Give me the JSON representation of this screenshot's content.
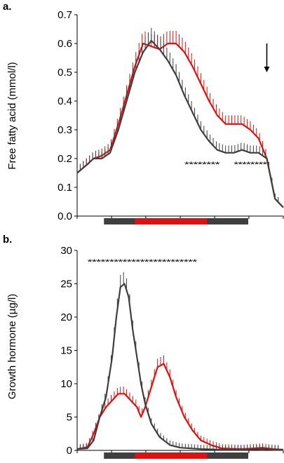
{
  "colors": {
    "red": "#e01010",
    "dark": "#3f3f3f",
    "black": "#000000"
  },
  "chart_data": [
    {
      "type": "line",
      "panel_label": "a.",
      "ylabel": "Free fatty acid (mmol/l)",
      "ylim": [
        0,
        0.7
      ],
      "yticks": [
        0.0,
        0.1,
        0.2,
        0.3,
        0.4,
        0.5,
        0.6,
        0.7
      ],
      "ytick_labels": [
        "0.0",
        "0.1",
        "0.2",
        "0.3",
        "0.4",
        "0.5",
        "0.6",
        "0.7"
      ],
      "xlim": [
        0,
        100
      ],
      "xticks": [
        0,
        16.7,
        33.3,
        50,
        66.7,
        83.3,
        100
      ],
      "series": [
        {
          "color": "red",
          "x": [
            0,
            5,
            8,
            12,
            16,
            20,
            24,
            28,
            32,
            36,
            40,
            44,
            48,
            52,
            56,
            60,
            64,
            68,
            72,
            76,
            80,
            84,
            88,
            92,
            96,
            100
          ],
          "y": [
            0.15,
            0.18,
            0.2,
            0.21,
            0.23,
            0.32,
            0.42,
            0.52,
            0.6,
            0.59,
            0.58,
            0.6,
            0.6,
            0.57,
            0.52,
            0.46,
            0.4,
            0.35,
            0.32,
            0.32,
            0.32,
            0.3,
            0.27,
            0.2,
            0.06,
            0.03
          ]
        },
        {
          "color": "dark",
          "x": [
            0,
            5,
            8,
            12,
            16,
            20,
            24,
            28,
            32,
            36,
            40,
            44,
            48,
            52,
            56,
            60,
            64,
            68,
            72,
            76,
            80,
            84,
            88,
            92,
            96,
            100
          ],
          "y": [
            0.15,
            0.18,
            0.2,
            0.2,
            0.22,
            0.3,
            0.4,
            0.5,
            0.57,
            0.61,
            0.58,
            0.54,
            0.49,
            0.42,
            0.36,
            0.3,
            0.26,
            0.23,
            0.22,
            0.22,
            0.23,
            0.22,
            0.22,
            0.2,
            0.06,
            0.03
          ]
        }
      ],
      "annotations": [
        {
          "text": "********",
          "x_start": 52,
          "x_end": 69,
          "y": 0.18
        },
        {
          "text": "********",
          "x_start": 76,
          "x_end": 92,
          "y": 0.18
        }
      ],
      "arrow": {
        "x": 92,
        "y_from": 0.6,
        "y_to": 0.5
      },
      "bars": [
        {
          "color": "dark",
          "x_start": 13,
          "x_end": 83
        },
        {
          "color": "red",
          "x_start": 28,
          "x_end": 63
        }
      ]
    },
    {
      "type": "line",
      "panel_label": "b.",
      "ylabel": "Growth hormone (µg/l)",
      "ylim": [
        0,
        30
      ],
      "yticks": [
        0,
        5,
        10,
        15,
        20,
        25,
        30
      ],
      "ytick_labels": [
        "0",
        "5",
        "10",
        "15",
        "20",
        "25",
        "30"
      ],
      "xlim": [
        0,
        100
      ],
      "xticks": [
        0,
        16.7,
        33.3,
        50,
        66.7,
        83.3,
        100
      ],
      "series": [
        {
          "color": "red",
          "x": [
            0,
            5,
            8,
            11,
            14,
            17,
            20,
            23,
            26,
            29,
            31,
            33,
            36,
            39,
            42,
            45,
            48,
            52,
            56,
            60,
            65,
            70,
            80,
            90,
            95,
            100
          ],
          "y": [
            0.2,
            0.5,
            2.5,
            5,
            6.5,
            7.5,
            8.5,
            8.5,
            7.5,
            6.5,
            5,
            6.5,
            9.5,
            12.5,
            13,
            11,
            8,
            5,
            3,
            1.5,
            0.8,
            0.3,
            0.2,
            0.4,
            0.2,
            0.1
          ]
        },
        {
          "color": "dark",
          "x": [
            0,
            5,
            8,
            11,
            14,
            17,
            19,
            21,
            23,
            25,
            27,
            29,
            31,
            33,
            36,
            40,
            45,
            50,
            60,
            70,
            80,
            90,
            95,
            100
          ],
          "y": [
            0.2,
            0.3,
            1.5,
            5,
            8,
            14,
            20,
            24.5,
            25,
            23,
            18,
            14,
            10,
            7,
            4,
            2,
            0.8,
            0.4,
            0.2,
            0.1,
            0.1,
            0.2,
            0.1,
            0.1
          ]
        }
      ],
      "annotations": [
        {
          "text": "*************************",
          "x_start": 5,
          "x_end": 58,
          "y": 28.3
        }
      ],
      "bars": [
        {
          "color": "dark",
          "x_start": 13,
          "x_end": 83
        },
        {
          "color": "red",
          "x_start": 28,
          "x_end": 63
        }
      ]
    }
  ]
}
